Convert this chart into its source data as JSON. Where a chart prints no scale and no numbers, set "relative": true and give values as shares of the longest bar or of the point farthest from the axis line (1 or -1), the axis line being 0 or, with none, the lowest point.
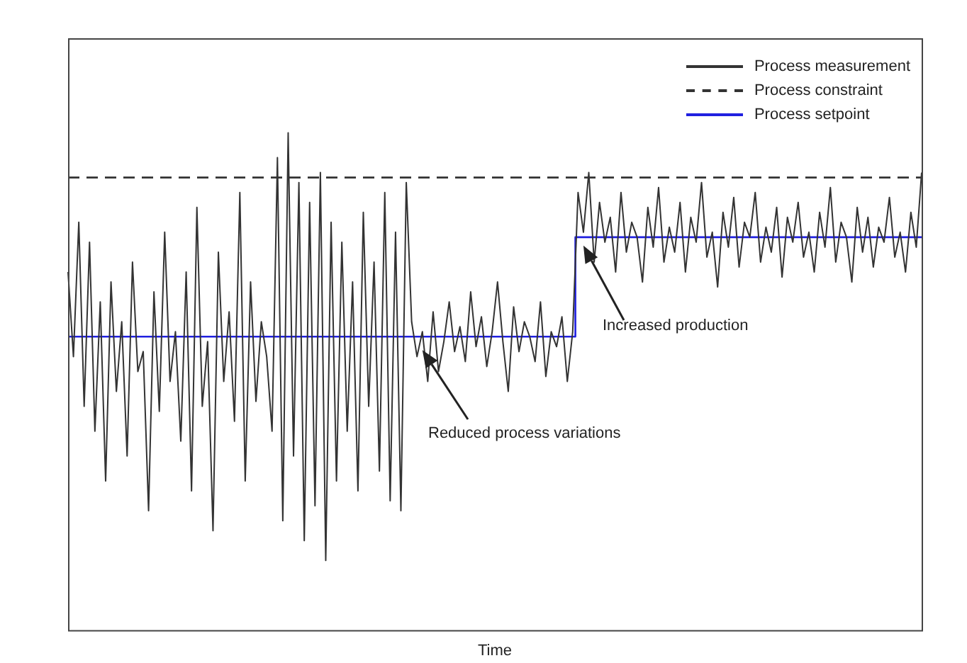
{
  "chart_data": {
    "type": "line",
    "relative": true,
    "xlabel": "Time",
    "legend": "top right",
    "marker": "none",
    "categories": [
      null,
      null,
      null,
      null,
      null,
      null,
      null,
      null,
      null,
      null,
      null,
      null,
      null,
      null,
      null,
      null,
      null,
      null,
      null,
      null,
      null,
      null,
      null,
      null,
      null,
      null,
      null,
      null,
      null,
      null,
      null,
      null,
      null,
      null,
      null,
      null,
      null,
      null,
      null,
      null,
      null,
      null,
      null,
      null,
      null,
      null,
      null,
      null,
      null,
      null,
      null,
      null,
      null,
      null,
      null,
      null,
      null,
      null,
      null,
      null,
      null,
      null,
      null,
      null,
      null,
      null,
      null,
      null,
      null,
      null,
      null,
      null,
      null,
      null,
      null,
      null,
      null,
      null,
      null,
      null,
      null,
      null,
      null,
      null,
      null,
      null,
      null,
      null,
      null,
      null,
      null,
      null,
      null,
      null,
      null,
      null,
      null,
      null,
      null,
      null,
      null,
      null,
      null,
      null,
      null,
      null,
      null,
      null,
      null,
      null,
      null,
      null,
      null,
      null,
      null,
      null,
      null,
      null,
      null,
      null,
      null,
      null,
      null,
      null,
      null,
      null,
      null,
      null,
      null,
      null,
      null,
      null,
      null,
      null,
      null,
      null,
      null,
      null,
      null,
      null,
      null,
      null,
      null,
      null,
      null,
      null,
      null,
      null,
      null,
      null,
      null,
      null,
      null,
      null,
      null,
      null,
      null,
      null,
      null,
      null
    ],
    "series": [
      {
        "name": "Process measurement",
        "color": "#333333",
        "line_style": "solid",
        "values": [
          0.72,
          0.55,
          0.82,
          0.45,
          0.78,
          0.4,
          0.66,
          0.3,
          0.7,
          0.48,
          0.62,
          0.35,
          0.74,
          0.52,
          0.56,
          0.24,
          0.68,
          0.44,
          0.8,
          0.5,
          0.6,
          0.38,
          0.72,
          0.28,
          0.85,
          0.45,
          0.58,
          0.2,
          0.76,
          0.5,
          0.64,
          0.42,
          0.88,
          0.3,
          0.7,
          0.46,
          0.62,
          0.55,
          0.4,
          0.95,
          0.22,
          1.0,
          0.35,
          0.9,
          0.18,
          0.86,
          0.25,
          0.92,
          0.14,
          0.82,
          0.3,
          0.78,
          0.4,
          0.7,
          0.28,
          0.84,
          0.45,
          0.74,
          0.32,
          0.88,
          0.26,
          0.8,
          0.24,
          0.9,
          0.62,
          0.55,
          0.6,
          0.5,
          0.64,
          0.52,
          0.58,
          0.66,
          0.56,
          0.61,
          0.54,
          0.68,
          0.57,
          0.63,
          0.53,
          0.6,
          0.7,
          0.58,
          0.48,
          0.65,
          0.56,
          0.62,
          0.59,
          0.54,
          0.66,
          0.51,
          0.6,
          0.57,
          0.63,
          0.5,
          0.6,
          0.88,
          0.8,
          0.92,
          0.74,
          0.86,
          0.78,
          0.83,
          0.72,
          0.88,
          0.76,
          0.82,
          0.79,
          0.7,
          0.85,
          0.77,
          0.89,
          0.74,
          0.81,
          0.76,
          0.86,
          0.72,
          0.83,
          0.78,
          0.9,
          0.75,
          0.8,
          0.69,
          0.84,
          0.77,
          0.87,
          0.73,
          0.82,
          0.79,
          0.88,
          0.74,
          0.81,
          0.76,
          0.85,
          0.71,
          0.83,
          0.78,
          0.86,
          0.75,
          0.8,
          0.72,
          0.84,
          0.77,
          0.89,
          0.74,
          0.82,
          0.79,
          0.7,
          0.85,
          0.76,
          0.83,
          0.73,
          0.81,
          0.78,
          0.87,
          0.75,
          0.8,
          0.72,
          0.84,
          0.77,
          0.92
        ]
      },
      {
        "name": "Process constraint",
        "color": "#333333",
        "line_style": "dashed",
        "values": [
          0.91,
          0.91,
          0.91,
          0.91,
          0.91,
          0.91,
          0.91,
          0.91,
          0.91,
          0.91,
          0.91,
          0.91,
          0.91,
          0.91,
          0.91,
          0.91,
          0.91,
          0.91,
          0.91,
          0.91,
          0.91,
          0.91,
          0.91,
          0.91,
          0.91,
          0.91,
          0.91,
          0.91,
          0.91,
          0.91,
          0.91,
          0.91,
          0.91,
          0.91,
          0.91,
          0.91,
          0.91,
          0.91,
          0.91,
          0.91,
          0.91,
          0.91,
          0.91,
          0.91,
          0.91,
          0.91,
          0.91,
          0.91,
          0.91,
          0.91,
          0.91,
          0.91,
          0.91,
          0.91,
          0.91,
          0.91,
          0.91,
          0.91,
          0.91,
          0.91,
          0.91,
          0.91,
          0.91,
          0.91,
          0.91,
          0.91,
          0.91,
          0.91,
          0.91,
          0.91,
          0.91,
          0.91,
          0.91,
          0.91,
          0.91,
          0.91,
          0.91,
          0.91,
          0.91,
          0.91,
          0.91,
          0.91,
          0.91,
          0.91,
          0.91,
          0.91,
          0.91,
          0.91,
          0.91,
          0.91,
          0.91,
          0.91,
          0.91,
          0.91,
          0.91,
          0.91,
          0.91,
          0.91,
          0.91,
          0.91,
          0.91,
          0.91,
          0.91,
          0.91,
          0.91,
          0.91,
          0.91,
          0.91,
          0.91,
          0.91,
          0.91,
          0.91,
          0.91,
          0.91,
          0.91,
          0.91,
          0.91,
          0.91,
          0.91,
          0.91,
          0.91,
          0.91,
          0.91,
          0.91,
          0.91,
          0.91,
          0.91,
          0.91,
          0.91,
          0.91,
          0.91,
          0.91,
          0.91,
          0.91,
          0.91,
          0.91,
          0.91,
          0.91,
          0.91,
          0.91,
          0.91,
          0.91,
          0.91,
          0.91,
          0.91,
          0.91,
          0.91,
          0.91,
          0.91,
          0.91,
          0.91,
          0.91,
          0.91,
          0.91,
          0.91,
          0.91,
          0.91,
          0.91,
          0.91,
          0.91
        ]
      },
      {
        "name": "Process setpoint",
        "type": "step",
        "color": "#2020e0",
        "line_style": "solid",
        "values": [
          0.59,
          0.59,
          0.59,
          0.59,
          0.59,
          0.59,
          0.59,
          0.59,
          0.59,
          0.59,
          0.59,
          0.59,
          0.59,
          0.59,
          0.59,
          0.59,
          0.59,
          0.59,
          0.59,
          0.59,
          0.59,
          0.59,
          0.59,
          0.59,
          0.59,
          0.59,
          0.59,
          0.59,
          0.59,
          0.59,
          0.59,
          0.59,
          0.59,
          0.59,
          0.59,
          0.59,
          0.59,
          0.59,
          0.59,
          0.59,
          0.59,
          0.59,
          0.59,
          0.59,
          0.59,
          0.59,
          0.59,
          0.59,
          0.59,
          0.59,
          0.59,
          0.59,
          0.59,
          0.59,
          0.59,
          0.59,
          0.59,
          0.59,
          0.59,
          0.59,
          0.59,
          0.59,
          0.59,
          0.59,
          0.59,
          0.59,
          0.59,
          0.59,
          0.59,
          0.59,
          0.59,
          0.59,
          0.59,
          0.59,
          0.59,
          0.59,
          0.59,
          0.59,
          0.59,
          0.59,
          0.59,
          0.59,
          0.59,
          0.59,
          0.59,
          0.59,
          0.59,
          0.59,
          0.59,
          0.59,
          0.59,
          0.59,
          0.59,
          0.59,
          0.59,
          0.79,
          0.79,
          0.79,
          0.79,
          0.79,
          0.79,
          0.79,
          0.79,
          0.79,
          0.79,
          0.79,
          0.79,
          0.79,
          0.79,
          0.79,
          0.79,
          0.79,
          0.79,
          0.79,
          0.79,
          0.79,
          0.79,
          0.79,
          0.79,
          0.79,
          0.79,
          0.79,
          0.79,
          0.79,
          0.79,
          0.79,
          0.79,
          0.79,
          0.79,
          0.79,
          0.79,
          0.79,
          0.79,
          0.79,
          0.79,
          0.79,
          0.79,
          0.79,
          0.79,
          0.79,
          0.79,
          0.79,
          0.79,
          0.79,
          0.79,
          0.79,
          0.79,
          0.79,
          0.79,
          0.79,
          0.79,
          0.79,
          0.79,
          0.79,
          0.79,
          0.79,
          0.79,
          0.79,
          0.79,
          0.79
        ]
      }
    ],
    "annotations": [
      "Reduced process variations",
      "Increased production"
    ]
  }
}
